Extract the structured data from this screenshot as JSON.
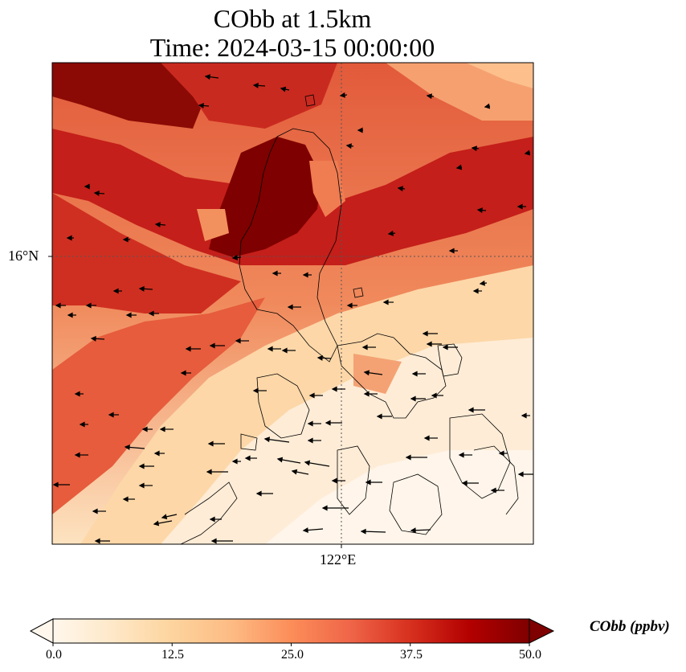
{
  "title": {
    "line1": "CObb at 1.5km",
    "line2": "Time: 2024-03-15 00:00:00"
  },
  "map": {
    "lat_tick": "16°N",
    "lon_tick": "122°E",
    "field": "CObb concentration at 1.5km",
    "overlays": [
      "wind-arrows",
      "coastlines",
      "graticule"
    ]
  },
  "colorbar": {
    "label": "CObb (ppbv)",
    "ticks": [
      "0.0",
      "12.5",
      "25.0",
      "37.5",
      "50.0"
    ],
    "min": 0,
    "max": 50,
    "colormap": [
      "#fff7ec",
      "#fee8c8",
      "#fdd49e",
      "#fdbb84",
      "#fc8d59",
      "#ef6548",
      "#d7301f",
      "#b30000",
      "#7f0000"
    ]
  }
}
